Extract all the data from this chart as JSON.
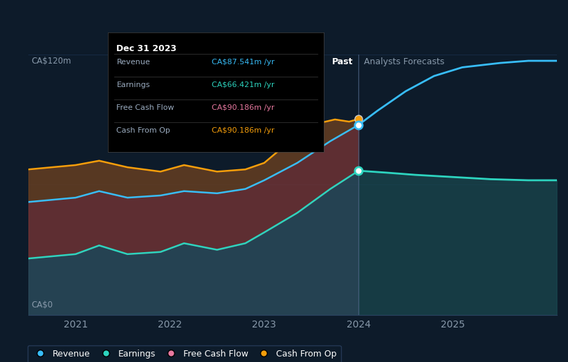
{
  "background_color": "#0d1b2a",
  "plot_bg_color": "#0d1b2a",
  "tooltip": {
    "title": "Dec 31 2023",
    "rows": [
      {
        "label": "Revenue",
        "value": "CA$87.541m",
        "color": "#38bdf8"
      },
      {
        "label": "Earnings",
        "value": "CA$66.421m",
        "color": "#2dd4bf"
      },
      {
        "label": "Free Cash Flow",
        "value": "CA$90.186m",
        "color": "#e879a0"
      },
      {
        "label": "Cash From Op",
        "value": "CA$90.186m",
        "color": "#f59e0b"
      }
    ]
  },
  "ylabel_top": "CA$120m",
  "ylabel_bottom": "CA$0",
  "x_labels": [
    "2021",
    "2022",
    "2023",
    "2024",
    "2025"
  ],
  "divider_x": 2024.0,
  "past_label": "Past",
  "forecast_label": "Analysts Forecasts",
  "y_max": 120,
  "y_min": 0,
  "x_min": 2020.5,
  "x_max": 2026.1,
  "revenue_color": "#38bdf8",
  "earnings_color": "#2dd4bf",
  "cashfromop_color": "#f59e0b",
  "revenue_past_x": [
    2020.5,
    2021.0,
    2021.25,
    2021.55,
    2021.9,
    2022.15,
    2022.5,
    2022.8,
    2023.0,
    2023.35,
    2023.7,
    2024.0
  ],
  "revenue_past_y": [
    52,
    54,
    57,
    54,
    55,
    57,
    56,
    58,
    62,
    70,
    80,
    87.5
  ],
  "earnings_past_x": [
    2020.5,
    2021.0,
    2021.25,
    2021.55,
    2021.9,
    2022.15,
    2022.5,
    2022.8,
    2023.0,
    2023.35,
    2023.7,
    2024.0
  ],
  "earnings_past_y": [
    26,
    28,
    32,
    28,
    29,
    33,
    30,
    33,
    38,
    47,
    58,
    66.4
  ],
  "cashfromop_past_x": [
    2020.5,
    2021.0,
    2021.25,
    2021.55,
    2021.9,
    2022.15,
    2022.5,
    2022.8,
    2023.0,
    2023.3,
    2023.55,
    2023.75,
    2023.9,
    2024.0
  ],
  "cashfromop_past_y": [
    67,
    69,
    71,
    68,
    66,
    69,
    66,
    67,
    70,
    81,
    88,
    90,
    89,
    90.2
  ],
  "revenue_future_x": [
    2024.0,
    2024.2,
    2024.5,
    2024.8,
    2025.1,
    2025.5,
    2025.8,
    2026.1
  ],
  "revenue_future_y": [
    87.5,
    94,
    103,
    110,
    114,
    116,
    117,
    117
  ],
  "earnings_future_x": [
    2024.0,
    2024.3,
    2024.6,
    2025.0,
    2025.4,
    2025.8,
    2026.1
  ],
  "earnings_future_y": [
    66.4,
    65.5,
    64.5,
    63.5,
    62.5,
    62,
    62
  ],
  "grid_lines_y": [
    60
  ],
  "grid_color": "#1e3a5f",
  "divider_color": "#4a6080",
  "legend_items": [
    {
      "label": "Revenue",
      "color": "#38bdf8"
    },
    {
      "label": "Earnings",
      "color": "#2dd4bf"
    },
    {
      "label": "Free Cash Flow",
      "color": "#e879a0"
    },
    {
      "label": "Cash From Op",
      "color": "#f59e0b"
    }
  ]
}
